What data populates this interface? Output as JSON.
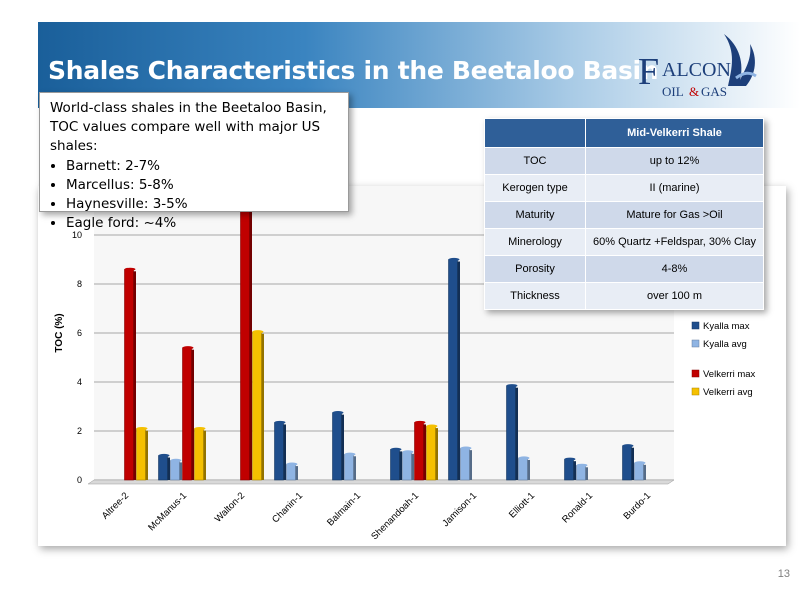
{
  "header": {
    "title": "Shales Characteristics in the Beetaloo Basin"
  },
  "logo": {
    "big_letter": "F",
    "word1": "ALCON",
    "word2": "OIL",
    "amp": "&",
    "word3": "GAS",
    "color": "#1d3f7a"
  },
  "callout": {
    "intro": "World-class shales in the Beetaloo Basin, TOC values compare well with major US shales:",
    "bullets": [
      "Barnett: 2-7%",
      "Marcellus: 5-8%",
      "Haynesville: 3-5%",
      "Eagle ford: ~4%"
    ]
  },
  "properties_table": {
    "header": [
      "",
      "Mid-Velkerri Shale"
    ],
    "rows": [
      [
        "TOC",
        "up to 12%"
      ],
      [
        "Kerogen type",
        "II (marine)"
      ],
      [
        "Maturity",
        "Mature for Gas >Oil"
      ],
      [
        "Minerology",
        "60% Quartz +Feldspar, 30% Clay"
      ],
      [
        "Porosity",
        "4-8%"
      ],
      [
        "Thickness",
        "over 100 m"
      ]
    ]
  },
  "chart_data": {
    "type": "bar",
    "categories": [
      "Altree-2",
      "McManus-1",
      "Walton-2",
      "Chanin-1",
      "Balmain-1",
      "Shenandoah-1",
      "Jamison-1",
      "Elliott-1",
      "Ronald-1",
      "Burdo-1"
    ],
    "ylabel": "TOC (%)",
    "ylim": [
      0,
      12
    ],
    "yticks": [
      0,
      2,
      4,
      6,
      8,
      10
    ],
    "grid": true,
    "legend_position": "right",
    "series": [
      {
        "name": "Kyalla max",
        "color": "#1f4e8c",
        "values": [
          null,
          1.0,
          null,
          2.35,
          2.75,
          1.25,
          9.0,
          3.85,
          0.85,
          1.4
        ]
      },
      {
        "name": "Kyalla avg",
        "color": "#8fb4e3",
        "values": [
          null,
          0.8,
          null,
          0.65,
          1.05,
          1.15,
          1.3,
          0.9,
          0.6,
          0.7
        ]
      },
      {
        "name": "Velkerri max",
        "color": "#c00000",
        "values": [
          8.6,
          5.4,
          12.0,
          null,
          null,
          2.35,
          null,
          null,
          null,
          null
        ]
      },
      {
        "name": "Velkerri avg",
        "color": "#f5c000",
        "values": [
          2.1,
          2.1,
          6.05,
          null,
          null,
          2.2,
          null,
          null,
          null,
          null
        ]
      }
    ]
  },
  "slide_number": "13"
}
